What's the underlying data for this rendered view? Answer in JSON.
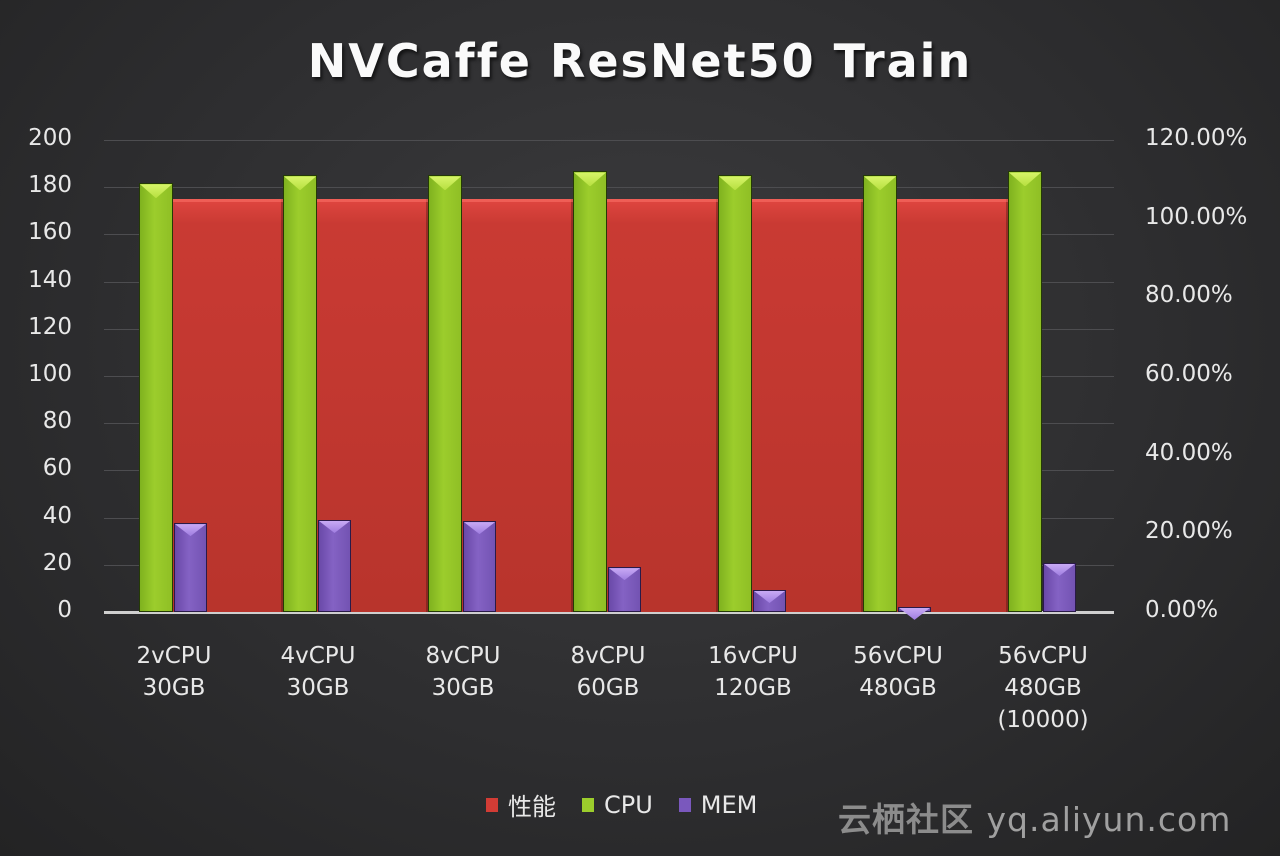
{
  "chart_data": {
    "type": "bar",
    "title": "NVCaffe ResNet50 Train",
    "categories": [
      "2vCPU\n30GB",
      "4vCPU\n30GB",
      "8vCPU\n30GB",
      "8vCPU\n60GB",
      "16vCPU\n120GB",
      "56vCPU\n480GB",
      "56vCPU\n480GB\n(10000)"
    ],
    "series": [
      {
        "name": "性能",
        "axis": "left",
        "color": "#c93a33",
        "values": [
          175,
          175,
          175,
          175,
          175,
          175,
          null
        ]
      },
      {
        "name": "CPU",
        "axis": "right",
        "color": "#9ccd2c",
        "values": [
          109,
          111,
          111,
          112,
          111,
          111,
          112
        ],
        "unit": "%"
      },
      {
        "name": "MEM",
        "axis": "right",
        "color": "#8462c4",
        "values": [
          22.6,
          23.4,
          23.1,
          11.4,
          5.6,
          1.3,
          12.5
        ],
        "unit": "%"
      }
    ],
    "y_left": {
      "label": "",
      "ylim": [
        0,
        200
      ],
      "ticks": [
        "200",
        "180",
        "160",
        "140",
        "120",
        "100",
        "80",
        "60",
        "40",
        "20",
        "0"
      ]
    },
    "y_right": {
      "label": "",
      "ylim": [
        0,
        120
      ],
      "ticks": [
        "120.00%",
        "100.00%",
        "80.00%",
        "60.00%",
        "40.00%",
        "20.00%",
        "0.00%"
      ]
    },
    "xlabel": "",
    "grid": true,
    "legend_position": "bottom"
  },
  "legend": [
    {
      "label": "性能",
      "color": "#d23c35"
    },
    {
      "label": "CPU",
      "color": "#9ccd2c"
    },
    {
      "label": "MEM",
      "color": "#7a58bd"
    }
  ],
  "watermark": {
    "brand": "云栖社区",
    "url": "yq.aliyun.com"
  }
}
